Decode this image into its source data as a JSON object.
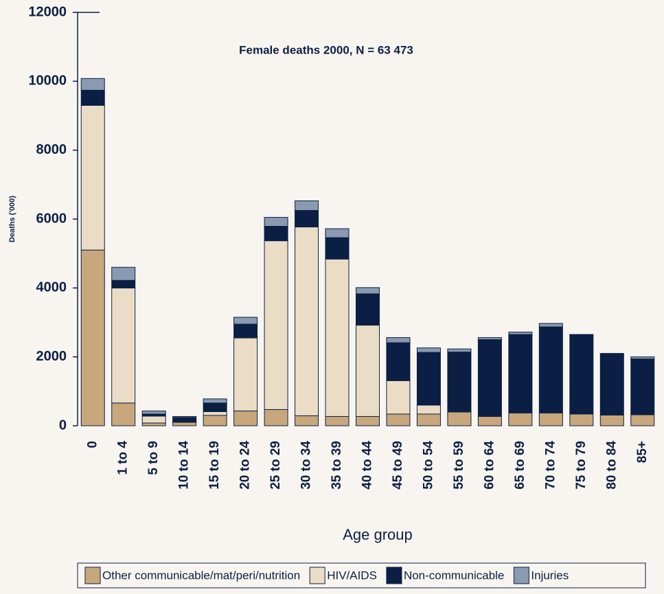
{
  "chart_data": {
    "type": "stacked_bar",
    "title": "Female deaths 2000, N = 63 473",
    "x_label": "Age group",
    "y_label": "Deaths ('000)",
    "categories": [
      "0",
      "1 to 4",
      "5 to 9",
      "10 to 14",
      "15 to 19",
      "20 to 24",
      "25 to 29",
      "30 to 34",
      "35 to 39",
      "40 to 44",
      "45 to 49",
      "50 to 54",
      "55 to 59",
      "60 to 64",
      "65 to 69",
      "70 to 74",
      "75 to 79",
      "80 to 84",
      "85+"
    ],
    "series": [
      {
        "name": "Other communicable/mat/peri/nutrition",
        "color": "#c9a77c",
        "values": [
          5100,
          660,
          80,
          100,
          300,
          430,
          470,
          290,
          270,
          270,
          340,
          340,
          400,
          270,
          370,
          370,
          340,
          310,
          320
        ]
      },
      {
        "name": "HIV/AIDS",
        "color": "#ebdcc5",
        "values": [
          4200,
          3340,
          200,
          20,
          110,
          2120,
          4900,
          5480,
          4570,
          2650,
          970,
          260,
          0,
          0,
          0,
          0,
          0,
          0,
          0
        ]
      },
      {
        "name": "Non-communicable",
        "color": "#0b1f45",
        "values": [
          440,
          220,
          60,
          120,
          250,
          400,
          420,
          480,
          620,
          910,
          1100,
          1530,
          1740,
          2230,
          2280,
          2500,
          2290,
          1780,
          1620
        ]
      },
      {
        "name": "Injuries",
        "color": "#8a9ab0",
        "values": [
          340,
          380,
          90,
          30,
          120,
          200,
          260,
          280,
          260,
          180,
          150,
          130,
          90,
          60,
          70,
          100,
          20,
          10,
          60
        ]
      }
    ],
    "ylim": [
      0,
      12000
    ],
    "yticks": [
      0,
      2000,
      4000,
      6000,
      8000,
      10000,
      12000
    ],
    "grid": false,
    "legend": "bottom"
  }
}
